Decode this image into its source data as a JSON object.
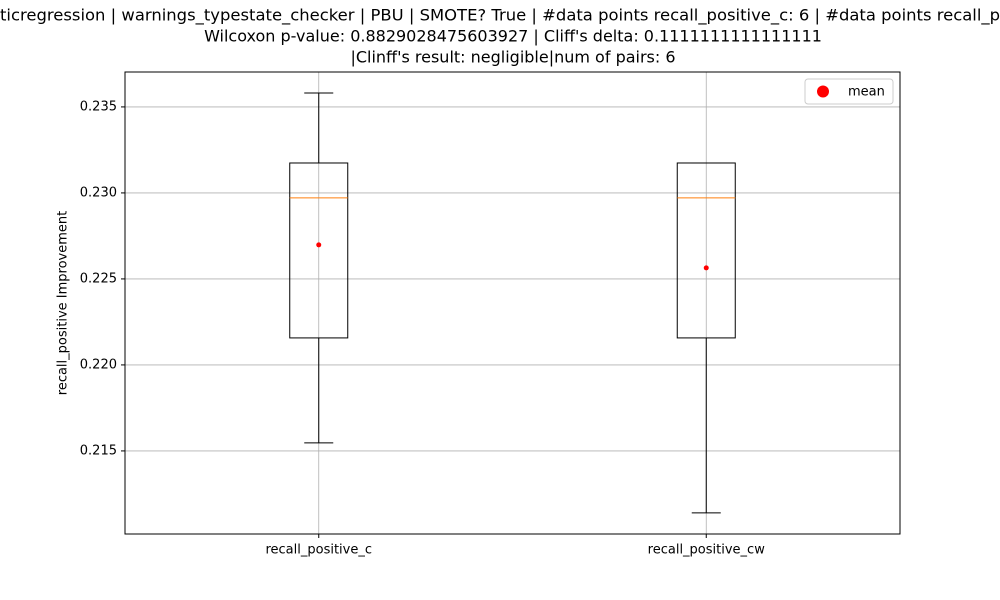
{
  "chart_data": {
    "type": "box",
    "title": [
      "ticregression | warnings_typestate_checker | PBU | SMOTE? True | #data points recall_positive_c: 6 | #data points recall_p",
      "Wilcoxon p-value: 0.8829028475603927 | Cliff's delta: 0.1111111111111111",
      "|Clinff's result: negligible|num of pairs: 6"
    ],
    "ylabel": "recall_positive Improvement",
    "categories": [
      "recall_positive_c",
      "recall_positive_cw"
    ],
    "whisker_low": [
      0.21547,
      0.2114
    ],
    "q1": [
      0.22157,
      0.22157
    ],
    "median": [
      0.22971,
      0.22971
    ],
    "q3": [
      0.23174,
      0.23174
    ],
    "whisker_high": [
      0.23581,
      0.23174
    ],
    "mean": [
      0.22698,
      0.22564
    ],
    "mean_label": "mean",
    "box_color": "#000000",
    "median_color": "#ff7f0e",
    "mean_color": "#ff0000",
    "ylim": [
      0.21017,
      0.23703
    ],
    "yticks": [
      0.215,
      {
        "value": 0.22,
        "label": "0.220"
      },
      0.225,
      {
        "value": 0.23,
        "label": "0.230"
      },
      0.235
    ],
    "grid": true,
    "legend": "upper right"
  }
}
